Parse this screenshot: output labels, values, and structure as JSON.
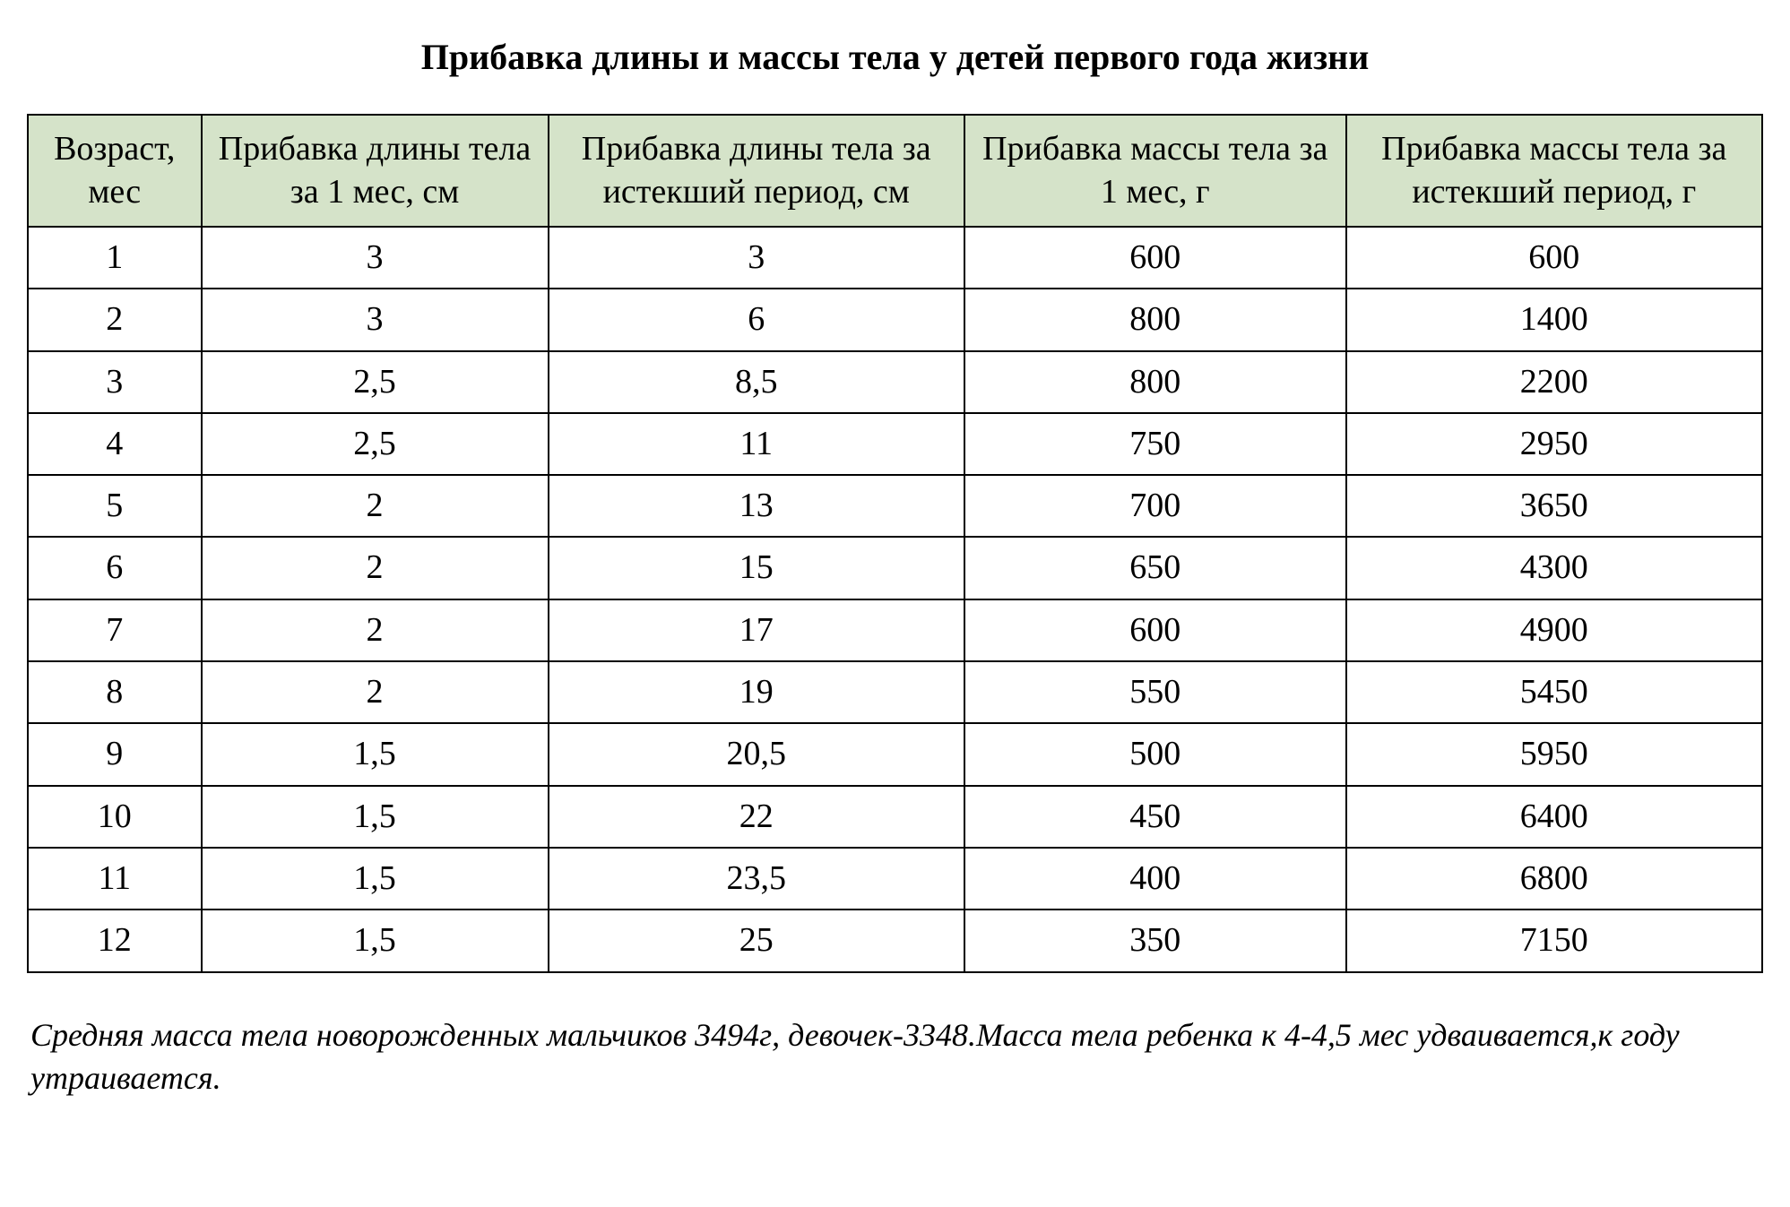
{
  "title": "Прибавка длины и массы тела у детей первого года жизни",
  "table": {
    "type": "table",
    "header_background": "#d5e3c9",
    "border_color": "#000000",
    "background_color": "#ffffff",
    "text_color": "#000000",
    "header_fontsize": 38,
    "cell_fontsize": 38,
    "columns": [
      "Возраст, мес",
      "Прибавка длины тела за 1 мес, см",
      "Прибавка длины тела за истекший период, см",
      "Прибавка массы тела за 1 мес, г",
      "Прибавка массы тела за истекший период, г"
    ],
    "column_widths_percent": [
      10,
      20,
      24,
      22,
      24
    ],
    "rows": [
      [
        "1",
        "3",
        "3",
        "600",
        "600"
      ],
      [
        "2",
        "3",
        "6",
        "800",
        "1400"
      ],
      [
        "3",
        "2,5",
        "8,5",
        "800",
        "2200"
      ],
      [
        "4",
        "2,5",
        "11",
        "750",
        "2950"
      ],
      [
        "5",
        "2",
        "13",
        "700",
        "3650"
      ],
      [
        "6",
        "2",
        "15",
        "650",
        "4300"
      ],
      [
        "7",
        "2",
        "17",
        "600",
        "4900"
      ],
      [
        "8",
        "2",
        "19",
        "550",
        "5450"
      ],
      [
        "9",
        "1,5",
        "20,5",
        "500",
        "5950"
      ],
      [
        "10",
        "1,5",
        "22",
        "450",
        "6400"
      ],
      [
        "11",
        "1,5",
        "23,5",
        "400",
        "6800"
      ],
      [
        "12",
        "1,5",
        "25",
        "350",
        "7150"
      ]
    ]
  },
  "footnote": "Средняя масса тела новорожденных мальчиков 3494г, девочек-3348.Масса тела ребенка к 4-4,5 мес удваивается,к году утраивается."
}
